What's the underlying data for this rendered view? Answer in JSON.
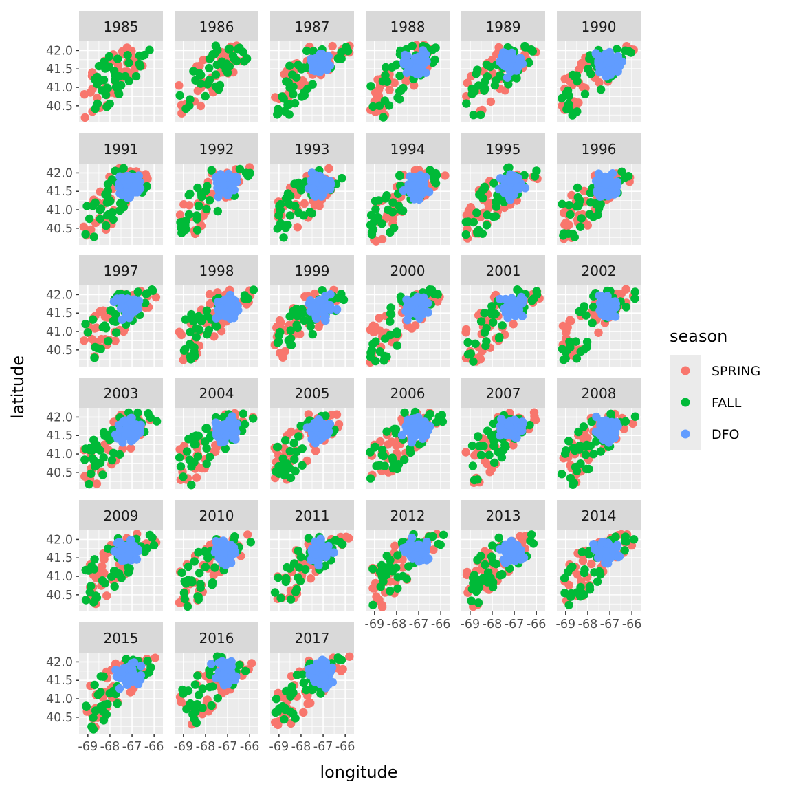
{
  "chart_data": {
    "type": "scatter",
    "facet_by": "year",
    "facets": [
      "1985",
      "1986",
      "1987",
      "1988",
      "1989",
      "1990",
      "1991",
      "1992",
      "1993",
      "1994",
      "1995",
      "1996",
      "1997",
      "1998",
      "1999",
      "2000",
      "2001",
      "2002",
      "2003",
      "2004",
      "2005",
      "2006",
      "2007",
      "2008",
      "2009",
      "2010",
      "2011",
      "2012",
      "2013",
      "2014",
      "2015",
      "2016",
      "2017"
    ],
    "xlabel": "longitude",
    "ylabel": "latitude",
    "xlim": [
      -69.4,
      -65.6
    ],
    "ylim": [
      40.05,
      42.25
    ],
    "x_ticks": [
      -69,
      -68,
      -67,
      -66
    ],
    "x_tick_labels": [
      "-69",
      "-68",
      "-67",
      "-66"
    ],
    "y_ticks": [
      40.5,
      41.0,
      41.5,
      42.0
    ],
    "y_tick_labels": [
      "40.5",
      "41.0",
      "41.5",
      "42.0"
    ],
    "grid": true,
    "legend": {
      "title": "season",
      "position": "right",
      "entries": [
        {
          "name": "SPRING",
          "color": "#F8766D"
        },
        {
          "name": "FALL",
          "color": "#00BA38"
        },
        {
          "name": "DFO",
          "color": "#619CFF"
        }
      ]
    },
    "series_present_note_free": true,
    "dfo_start_year": "1987",
    "points_per_panel": {
      "SPRING": 40,
      "FALL": 40,
      "DFO": 55
    }
  }
}
